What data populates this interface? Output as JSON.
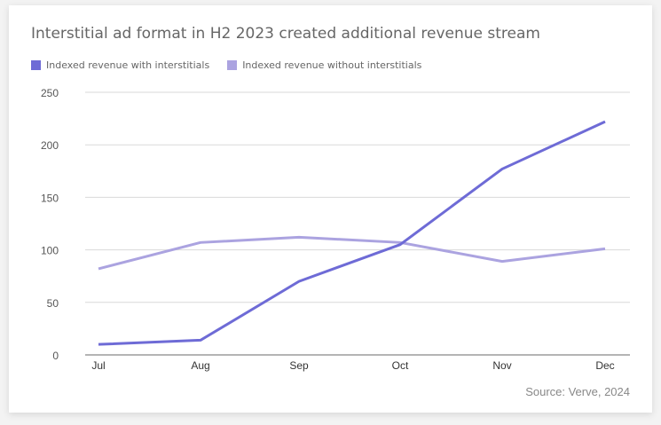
{
  "chart_data": {
    "type": "line",
    "title": "Interstitial ad format in H2 2023 created additional revenue stream",
    "xlabel": "",
    "ylabel": "",
    "categories": [
      "Jul",
      "Aug",
      "Sep",
      "Oct",
      "Nov",
      "Dec"
    ],
    "yticks": [
      "0",
      "50",
      "100",
      "150",
      "200",
      "250"
    ],
    "ylim": [
      0,
      250
    ],
    "grid": true,
    "legend_position": "top-left",
    "series": [
      {
        "name": "Indexed revenue with interstitials",
        "color": "#6E6BD6",
        "values": [
          10,
          14,
          70,
          105,
          177,
          222
        ]
      },
      {
        "name": "Indexed revenue without interstitials",
        "color": "#ABA3E0",
        "values": [
          82,
          107,
          112,
          107,
          89,
          101
        ]
      }
    ],
    "source": "Source: Verve, 2024"
  }
}
